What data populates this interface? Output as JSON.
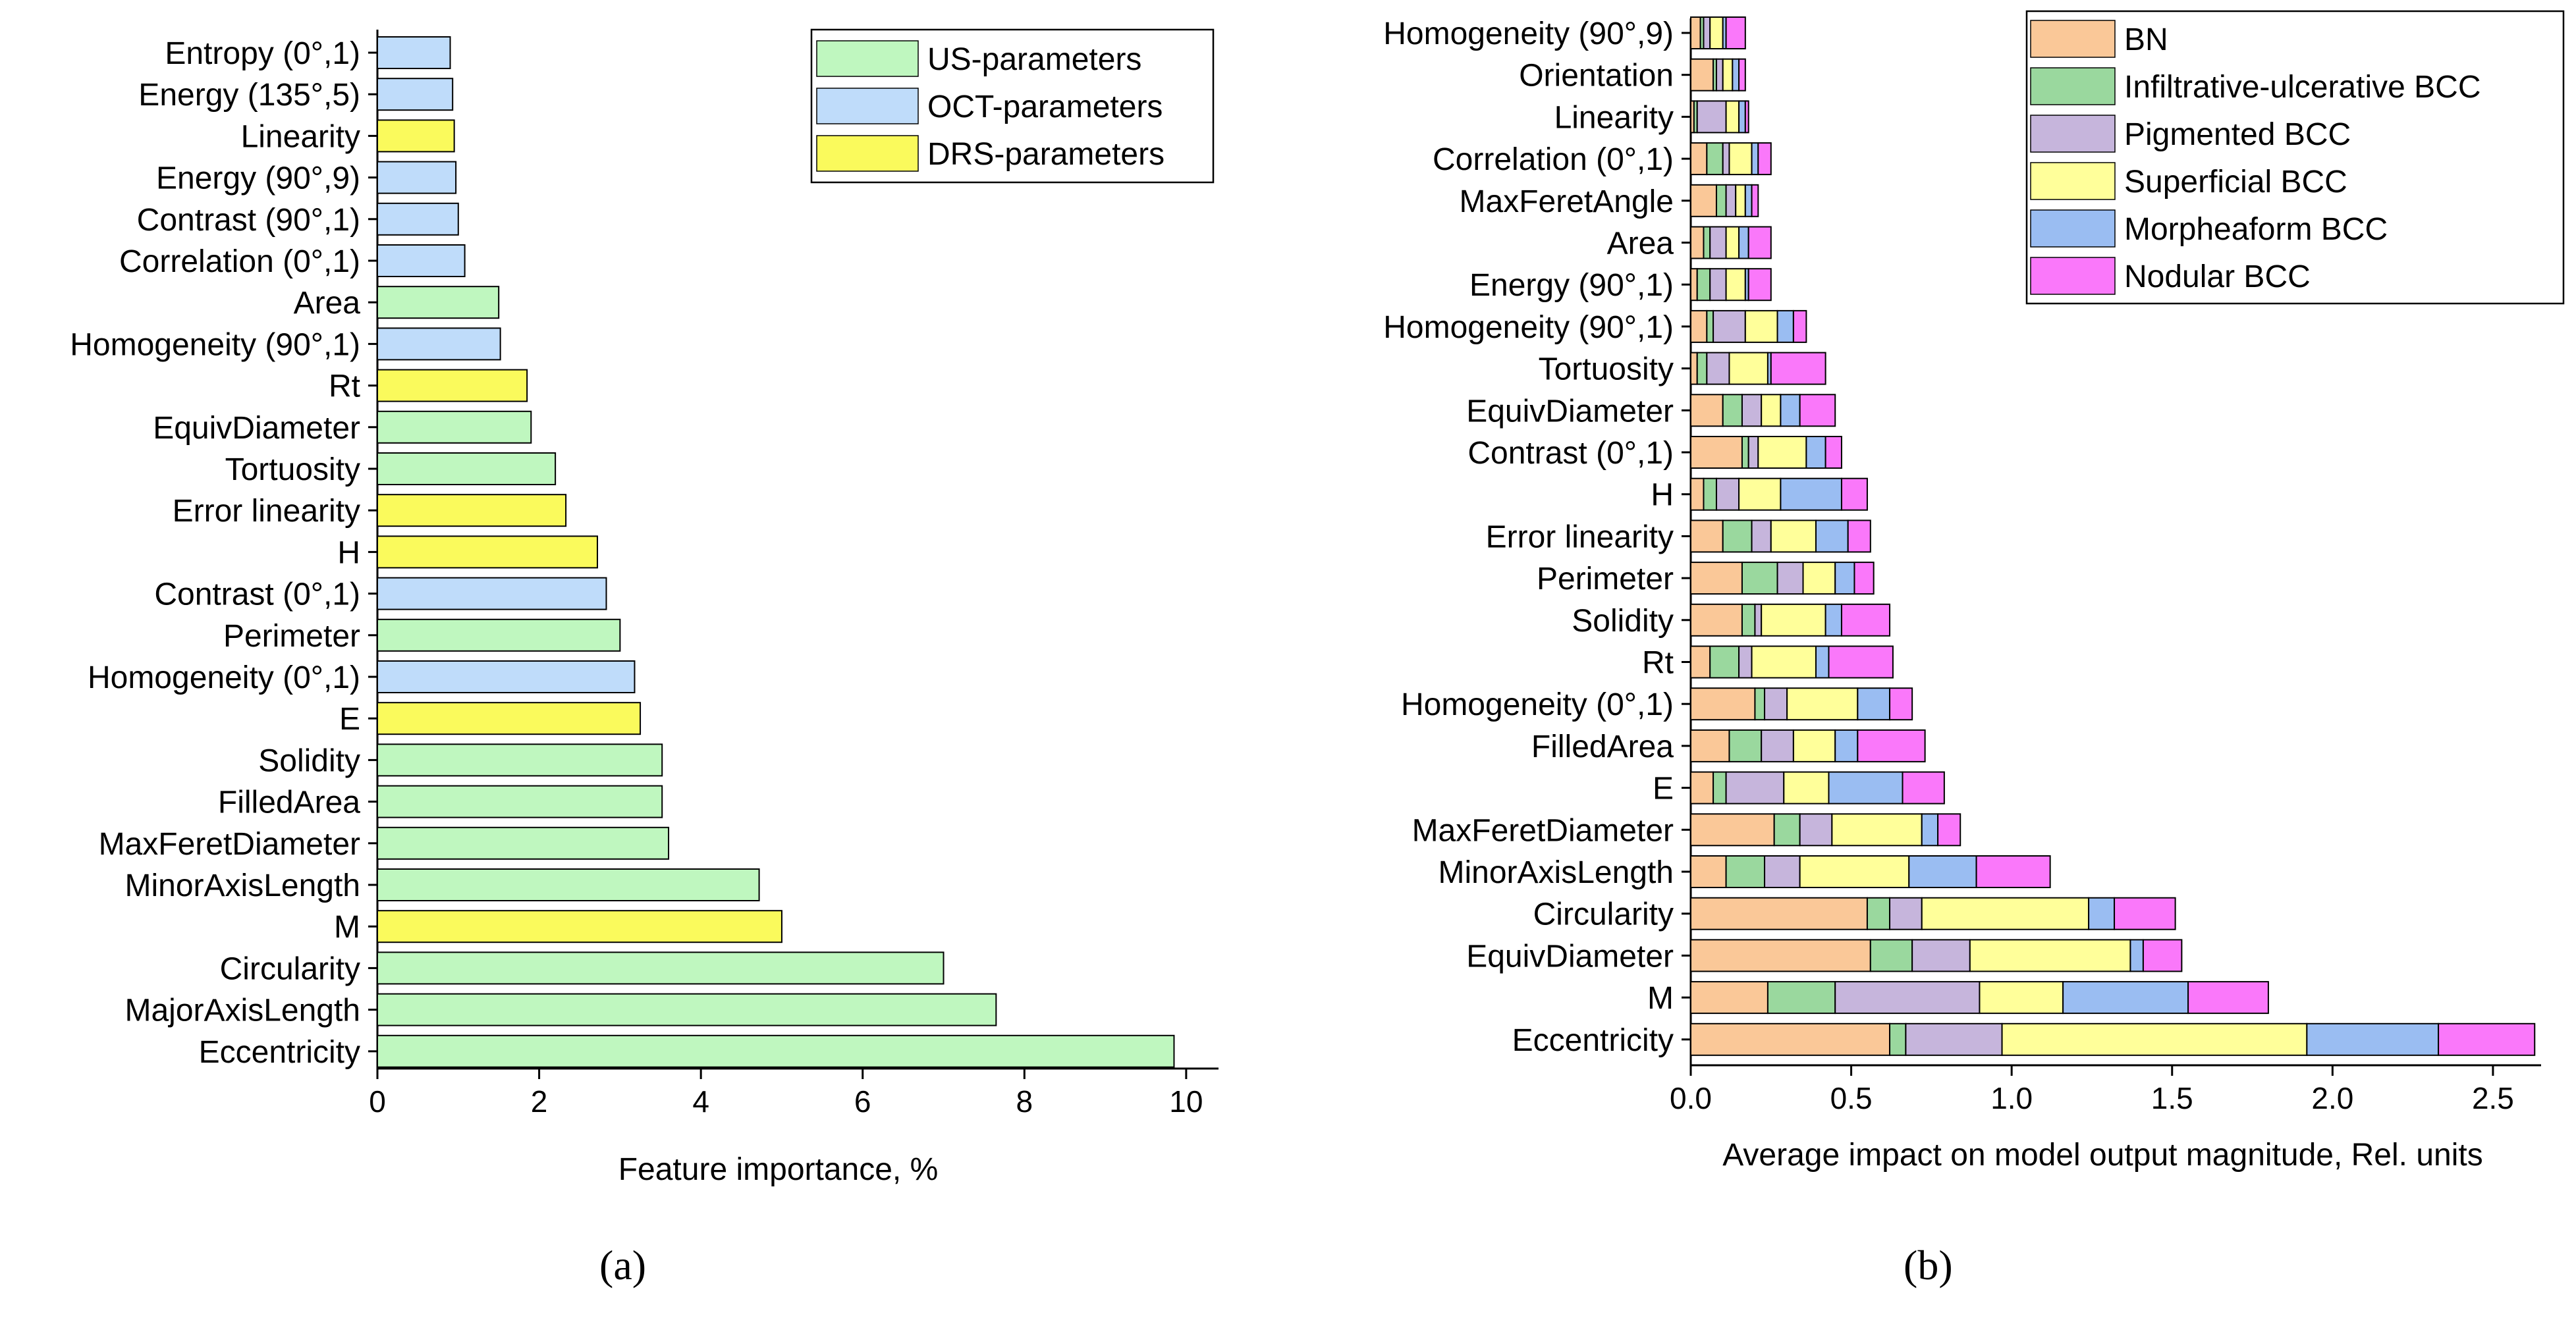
{
  "chart_data": [
    {
      "panel": "a",
      "type": "bar",
      "orientation": "horizontal",
      "xlabel": "Feature importance, %",
      "xlim": [
        0,
        10.4
      ],
      "xticks": [
        "0",
        "2",
        "4",
        "6",
        "8",
        "10"
      ],
      "legend_position": "top-right",
      "legend": [
        {
          "name": "US-parameters",
          "color": "#BFF7BF"
        },
        {
          "name": "OCT-parameters",
          "color": "#BFDCFA"
        },
        {
          "name": "DRS-parameters",
          "color": "#FAFA5C"
        }
      ],
      "categories": [
        "Entropy (0°,1)",
        "Energy (135°,5)",
        "Linearity",
        "Energy (90°,9)",
        "Contrast (90°,1)",
        "Correlation (0°,1)",
        "Area",
        "Homogeneity (90°,1)",
        "Rt",
        "EquivDiameter",
        "Tortuosity",
        "Error linearity",
        "H",
        "Contrast (0°,1)",
        "Perimeter",
        "Homogeneity (0°,1)",
        "E",
        "Solidity",
        "FilledArea",
        "MaxFeretDiameter",
        "MinorAxisLength",
        "M",
        "Circularity",
        "MajorAxisLength",
        "Eccentricity"
      ],
      "values": [
        0.9,
        0.93,
        0.95,
        0.97,
        1.0,
        1.08,
        1.5,
        1.52,
        1.85,
        1.9,
        2.2,
        2.33,
        2.72,
        2.83,
        3.0,
        3.18,
        3.25,
        3.52,
        3.52,
        3.6,
        4.72,
        5.0,
        7.0,
        7.65,
        9.85
      ],
      "groups": [
        1,
        1,
        2,
        1,
        1,
        1,
        0,
        1,
        2,
        0,
        0,
        2,
        2,
        1,
        0,
        1,
        2,
        0,
        0,
        0,
        0,
        2,
        0,
        0,
        0
      ],
      "caption": "(a)"
    },
    {
      "panel": "b",
      "type": "bar",
      "orientation": "horizontal",
      "stacked": true,
      "xlabel": "Average impact on model output magnitude, Rel. units",
      "xlim": [
        0,
        2.65
      ],
      "xticks": [
        "0.0",
        "0.5",
        "1.0",
        "1.5",
        "2.0",
        "2.5"
      ],
      "legend_position": "top-right",
      "categories": [
        "Homogeneity (90°,9)",
        "Orientation",
        "Linearity",
        "Correlation (0°,1)",
        "MaxFeretAngle",
        "Area",
        "Energy (90°,1)",
        "Homogeneity (90°,1)",
        "Tortuosity",
        "EquivDiameter",
        "Contrast (0°,1)",
        "H",
        "Error linearity",
        "Perimeter",
        "Solidity",
        "Rt",
        "Homogeneity (0°,1)",
        "FilledArea",
        "E",
        "MaxFeretDiameter",
        "MinorAxisLength",
        "Circularity",
        "EquivDiameter",
        "M",
        "Eccentricity"
      ],
      "series": [
        {
          "name": "BN",
          "color": "#FAC898",
          "values": [
            0.03,
            0.07,
            0.01,
            0.05,
            0.08,
            0.04,
            0.02,
            0.05,
            0.02,
            0.1,
            0.16,
            0.04,
            0.1,
            0.16,
            0.16,
            0.06,
            0.2,
            0.12,
            0.07,
            0.26,
            0.11,
            0.55,
            0.56,
            0.24,
            0.62
          ]
        },
        {
          "name": "Infiltrative-ulcerative BCC",
          "color": "#9AD89E",
          "values": [
            0.01,
            0.01,
            0.01,
            0.05,
            0.03,
            0.02,
            0.04,
            0.02,
            0.03,
            0.06,
            0.02,
            0.04,
            0.09,
            0.11,
            0.04,
            0.09,
            0.03,
            0.1,
            0.04,
            0.08,
            0.12,
            0.07,
            0.13,
            0.21,
            0.05
          ]
        },
        {
          "name": "Pigmented BCC",
          "color": "#C6B5DC",
          "values": [
            0.02,
            0.02,
            0.09,
            0.02,
            0.03,
            0.05,
            0.05,
            0.1,
            0.07,
            0.06,
            0.03,
            0.07,
            0.06,
            0.08,
            0.02,
            0.04,
            0.07,
            0.1,
            0.18,
            0.1,
            0.11,
            0.1,
            0.18,
            0.45,
            0.3
          ]
        },
        {
          "name": "Superficial BCC",
          "color": "#FFFF9A",
          "values": [
            0.04,
            0.03,
            0.04,
            0.07,
            0.03,
            0.04,
            0.06,
            0.1,
            0.12,
            0.06,
            0.15,
            0.13,
            0.14,
            0.1,
            0.2,
            0.2,
            0.22,
            0.13,
            0.14,
            0.28,
            0.34,
            0.52,
            0.5,
            0.26,
            0.95
          ]
        },
        {
          "name": "Morpheaform BCC",
          "color": "#9ABDF2",
          "values": [
            0.01,
            0.02,
            0.02,
            0.02,
            0.02,
            0.03,
            0.01,
            0.05,
            0.01,
            0.06,
            0.06,
            0.19,
            0.1,
            0.06,
            0.05,
            0.04,
            0.1,
            0.07,
            0.23,
            0.05,
            0.21,
            0.08,
            0.04,
            0.39,
            0.41
          ]
        },
        {
          "name": "Nodular BCC",
          "color": "#FA78FA",
          "values": [
            0.06,
            0.02,
            0.01,
            0.04,
            0.02,
            0.07,
            0.07,
            0.04,
            0.17,
            0.11,
            0.05,
            0.08,
            0.07,
            0.06,
            0.15,
            0.2,
            0.07,
            0.21,
            0.13,
            0.07,
            0.23,
            0.19,
            0.12,
            0.25,
            0.3
          ]
        }
      ],
      "caption": "(b)"
    }
  ]
}
